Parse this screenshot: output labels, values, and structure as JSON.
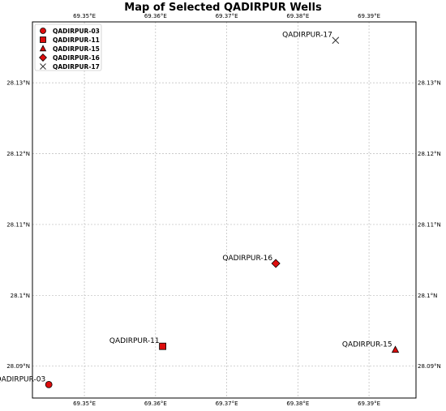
{
  "title": "Map of Selected QADIRPUR Wells",
  "marker_color": "#dd0d0d",
  "chart_data": {
    "type": "scatter",
    "title": "Map of Selected QADIRPUR Wells",
    "xlim": [
      69.3427,
      69.3966
    ],
    "ylim": [
      28.0855,
      28.1386
    ],
    "grid": true,
    "legend_position": "top-left",
    "x_ticks": [
      {
        "value": 69.35,
        "label": "69.35°E"
      },
      {
        "value": 69.36,
        "label": "69.36°E"
      },
      {
        "value": 69.37,
        "label": "69.37°E"
      },
      {
        "value": 69.38,
        "label": "69.38°E"
      },
      {
        "value": 69.39,
        "label": "69.39°E"
      }
    ],
    "y_ticks": [
      {
        "value": 28.09,
        "label": "28.09°N"
      },
      {
        "value": 28.1,
        "label": "28.1°N"
      },
      {
        "value": 28.11,
        "label": "28.11°N"
      },
      {
        "value": 28.12,
        "label": "28.12°N"
      },
      {
        "value": 28.13,
        "label": "28.13°N"
      }
    ],
    "series": [
      {
        "name": "QADIRPUR-03",
        "marker": "circle",
        "x": 69.345,
        "y": 28.0874
      },
      {
        "name": "QADIRPUR-11",
        "marker": "square",
        "x": 69.361,
        "y": 28.0928
      },
      {
        "name": "QADIRPUR-15",
        "marker": "triangle",
        "x": 69.3937,
        "y": 28.0923
      },
      {
        "name": "QADIRPUR-16",
        "marker": "diamond",
        "x": 69.3769,
        "y": 28.1045
      },
      {
        "name": "QADIRPUR-17",
        "marker": "x",
        "x": 69.3853,
        "y": 28.136
      }
    ]
  }
}
